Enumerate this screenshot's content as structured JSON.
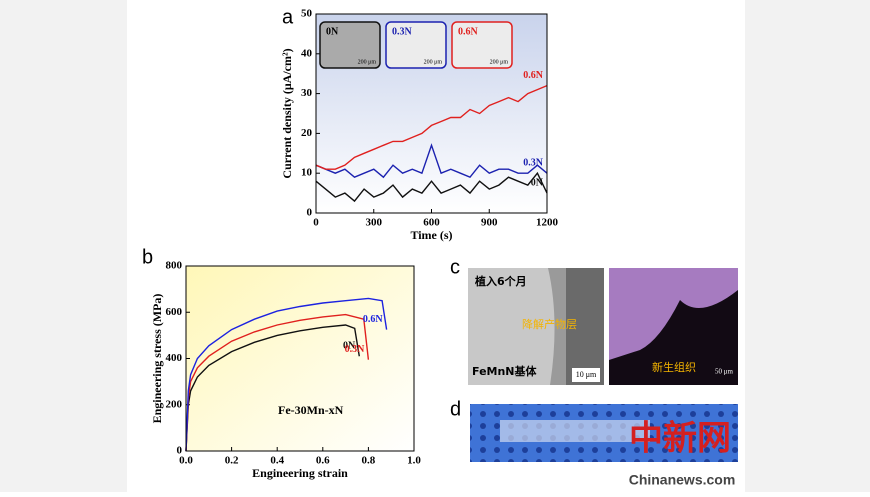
{
  "panels": {
    "a": "a",
    "b": "b",
    "c": "c",
    "d": "d"
  },
  "chart_data": [
    {
      "type": "line",
      "title": null,
      "x_label": "Time (s)",
      "y_label": "Current density (μA/cm²)",
      "x": [
        0,
        50,
        100,
        150,
        200,
        250,
        300,
        350,
        400,
        450,
        500,
        550,
        600,
        650,
        700,
        750,
        800,
        850,
        900,
        950,
        1000,
        1050,
        1100,
        1150,
        1200
      ],
      "series": [
        {
          "name": "0N",
          "color": "#111111",
          "values": [
            8,
            6,
            4,
            5,
            3,
            6,
            4,
            5,
            7,
            4,
            6,
            5,
            8,
            5,
            6,
            7,
            5,
            8,
            6,
            7,
            9,
            8,
            7,
            10,
            5
          ]
        },
        {
          "name": "0.3N",
          "color": "#1c22b0",
          "values": [
            12,
            11,
            10,
            11,
            9,
            10,
            11,
            9,
            12,
            10,
            11,
            10,
            17,
            10,
            11,
            10,
            9,
            12,
            10,
            11,
            11,
            10,
            10,
            12,
            10
          ]
        },
        {
          "name": "0.6N",
          "color": "#e0201e",
          "values": [
            12,
            11,
            11,
            12,
            14,
            15,
            16,
            17,
            18,
            18,
            19,
            20,
            22,
            23,
            24,
            24,
            26,
            25,
            27,
            28,
            29,
            28,
            30,
            31,
            32
          ]
        }
      ],
      "xlim": [
        0,
        1200
      ],
      "xticks": [
        0,
        300,
        600,
        900,
        1200
      ],
      "ylim": [
        0,
        50
      ],
      "yticks": [
        0,
        10,
        20,
        30,
        40,
        50
      ],
      "insets": [
        {
          "label": "0N",
          "scale": "200 μm"
        },
        {
          "label": "0.3N",
          "scale": "200 μm"
        },
        {
          "label": "0.6N",
          "scale": "200 μm"
        }
      ]
    },
    {
      "type": "line",
      "x_label": "Engineering strain",
      "y_label": "Engineering stress (MPa)",
      "annotation": "Fe-30Mn-xN",
      "series": [
        {
          "name": "0N",
          "color": "#111111",
          "x": [
            0,
            0.01,
            0.02,
            0.05,
            0.1,
            0.2,
            0.3,
            0.4,
            0.5,
            0.6,
            0.7,
            0.74,
            0.76
          ],
          "values": [
            0,
            200,
            260,
            320,
            370,
            430,
            470,
            500,
            520,
            535,
            545,
            530,
            410
          ]
        },
        {
          "name": "0.3N",
          "color": "#e0201e",
          "x": [
            0,
            0.01,
            0.02,
            0.05,
            0.1,
            0.2,
            0.3,
            0.4,
            0.5,
            0.6,
            0.7,
            0.78,
            0.8
          ],
          "values": [
            0,
            230,
            300,
            360,
            410,
            475,
            515,
            545,
            565,
            580,
            590,
            570,
            395
          ]
        },
        {
          "name": "0.6N",
          "color": "#1c22e0",
          "x": [
            0,
            0.01,
            0.02,
            0.05,
            0.1,
            0.2,
            0.3,
            0.4,
            0.5,
            0.6,
            0.7,
            0.8,
            0.86,
            0.88
          ],
          "values": [
            0,
            260,
            330,
            400,
            455,
            525,
            570,
            605,
            625,
            640,
            650,
            660,
            650,
            525
          ]
        }
      ],
      "xlim": [
        0,
        1.0
      ],
      "xticks": [
        {
          "value": 0,
          "label": "0.0"
        },
        0.2,
        0.4,
        0.6,
        0.8,
        {
          "value": 1.0,
          "label": "1.0"
        }
      ],
      "ylim": [
        0,
        800
      ],
      "yticks": [
        0,
        200,
        400,
        600,
        800
      ]
    }
  ],
  "images": {
    "c_left": {
      "time": "植入6个月",
      "layer": "降解产物层",
      "matrix": "FeMnN基体",
      "scale": "10 μm"
    },
    "c_right": {
      "tissue": "新生组织",
      "scale": "50 μm"
    },
    "watermark": "中新网",
    "site": "Chinanews.com"
  }
}
